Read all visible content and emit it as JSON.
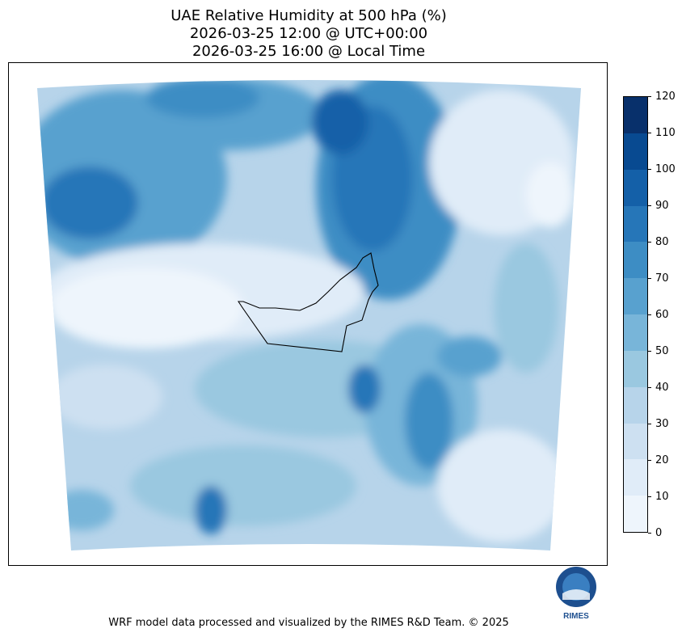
{
  "title": {
    "line1": "UAE Relative Humidity at 500 hPa (%)",
    "line2": "2026-03-25 12:00 @ UTC+00:00",
    "line3": "2026-03-25 16:00 @ Local Time"
  },
  "colorbar": {
    "ticks": [
      "0",
      "10",
      "20",
      "30",
      "40",
      "50",
      "60",
      "70",
      "80",
      "90",
      "100",
      "110",
      "120"
    ],
    "colors": [
      "#eef5fc",
      "#e0ecf8",
      "#cde0f1",
      "#b7d4ea",
      "#9ac8e0",
      "#78b5d9",
      "#58a1cf",
      "#3d8dc4",
      "#2676b8",
      "#1460a8",
      "#084a91",
      "#08306b"
    ]
  },
  "logo": {
    "text": "RIMES"
  },
  "footer": "WRF model data processed and visualized by the RIMES R&D Team. © 2025"
}
